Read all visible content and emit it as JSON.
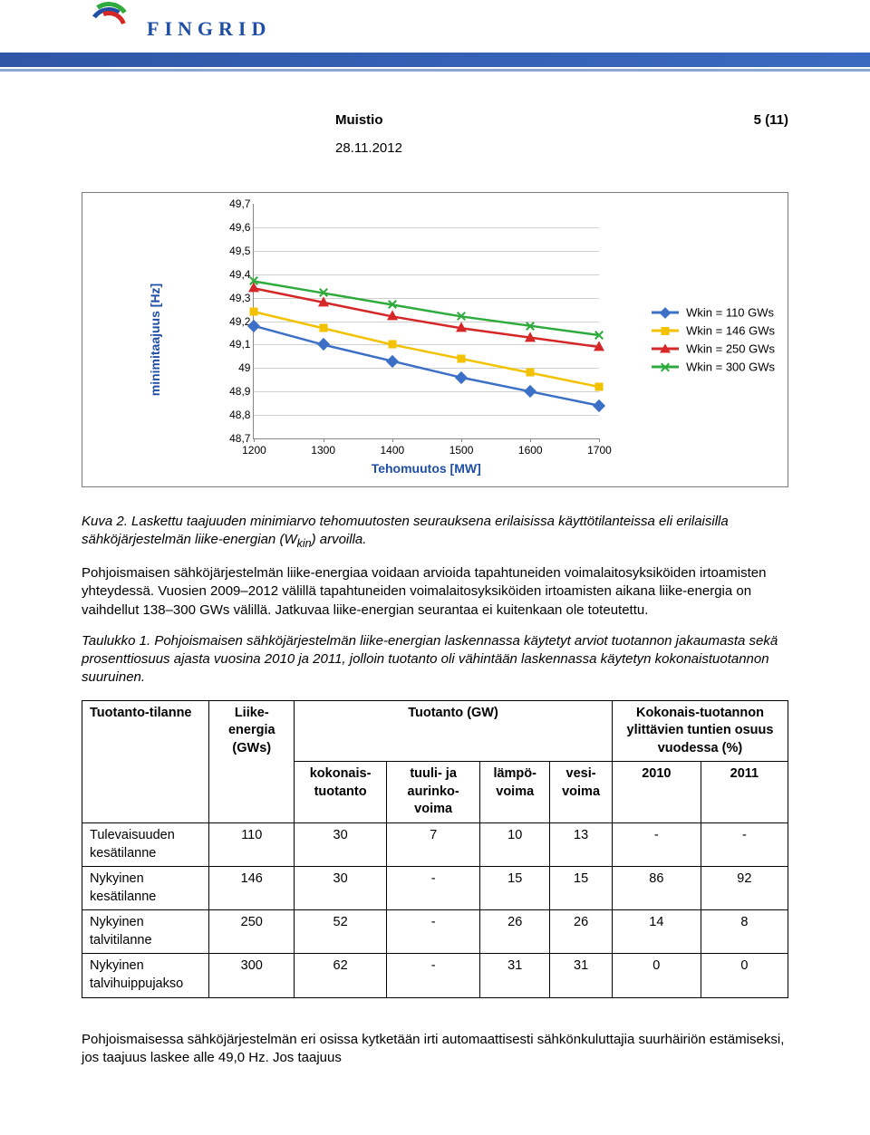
{
  "header": {
    "logo_text": "FINGRID",
    "doc_type": "Muistio",
    "page_of": "5 (11)",
    "date": "28.11.2012"
  },
  "chart": {
    "type": "line",
    "ylabel": "minimitaajuus [Hz]",
    "xlabel": "Tehomuutos [MW]",
    "ylim": [
      48.7,
      49.7
    ],
    "ytick_step": 0.1,
    "yticks": [
      "49,7",
      "49,6",
      "49,5",
      "49,4",
      "49,3",
      "49,2",
      "49,1",
      "49",
      "48,9",
      "48,8",
      "48,7"
    ],
    "xlim": [
      1200,
      1700
    ],
    "xtick_step": 100,
    "xticks": [
      "1200",
      "1300",
      "1400",
      "1500",
      "1600",
      "1700"
    ],
    "grid_color": "#d0d0d0",
    "axis_color": "#888888",
    "background": "#ffffff",
    "label_color": "#1f4fa5",
    "series": [
      {
        "name": "Wkin = 110 GWs",
        "color": "#3b70c6",
        "marker": "diamond",
        "x": [
          1200,
          1300,
          1400,
          1500,
          1600,
          1700
        ],
        "y": [
          49.18,
          49.1,
          49.03,
          48.96,
          48.9,
          48.84
        ]
      },
      {
        "name": "Wkin = 146 GWs",
        "color": "#f2c200",
        "marker": "square",
        "x": [
          1200,
          1300,
          1400,
          1500,
          1600,
          1700
        ],
        "y": [
          49.24,
          49.17,
          49.1,
          49.04,
          48.98,
          48.92
        ]
      },
      {
        "name": "Wkin = 250 GWs",
        "color": "#d62728",
        "marker": "triangle",
        "x": [
          1200,
          1300,
          1400,
          1500,
          1600,
          1700
        ],
        "y": [
          49.34,
          49.28,
          49.22,
          49.17,
          49.13,
          49.09
        ]
      },
      {
        "name": "Wkin = 300 GWs",
        "color": "#2faa3c",
        "marker": "cross",
        "x": [
          1200,
          1300,
          1400,
          1500,
          1600,
          1700
        ],
        "y": [
          49.37,
          49.32,
          49.27,
          49.22,
          49.18,
          49.14
        ]
      }
    ]
  },
  "captions": {
    "fig": "Kuva 2. Laskettu taajuuden minimiarvo tehomuutosten seurauksena erilaisissa käyttötilanteissa eli erilaisilla sähköjärjestelmän liike-energian (W",
    "fig_sub": "kin",
    "fig_end": ") arvoilla.",
    "para1": "Pohjoismaisen sähköjärjestelmän liike-energiaa voidaan arvioida tapahtuneiden voimalaitosyksiköiden irtoamisten yhteydessä. Vuosien 2009–2012 välillä tapahtuneiden voimalaitosyksiköiden irtoamisten aikana liike-energia on vaihdellut 138–300 GWs välillä. Jatkuvaa liike-energian seurantaa ei kuitenkaan ole toteutettu.",
    "tbl_caption": "Taulukko 1. Pohjoismaisen sähköjärjestelmän liike-energian laskennassa käytetyt arviot tuotannon jakaumasta sekä prosenttiosuus ajasta vuosina 2010 ja 2011, jolloin tuotanto oli vähintään laskennassa käytetyn kokonaistuotannon suuruinen.",
    "footer": "Pohjoismaisessa sähköjärjestelmän eri osissa kytketään irti automaattisesti sähkönkuluttajia suurhäiriön estämiseksi, jos taajuus laskee alle 49,0 Hz. Jos taajuus"
  },
  "table": {
    "headers": {
      "c1": "Tuotanto-tilanne",
      "c2": "Liike-energia (GWs)",
      "c3": "Tuotanto (GW)",
      "c4": "Kokonais-tuotannon ylittävien tuntien osuus vuodessa (%)",
      "c3a": "kokonais-tuotanto",
      "c3b": "tuuli- ja aurinko-voima",
      "c3c": "lämpö-voima",
      "c3d": "vesi-voima",
      "c4a": "2010",
      "c4b": "2011"
    },
    "rows": [
      {
        "label": "Tulevaisuuden kesätilanne",
        "e": "110",
        "tot": "30",
        "wind": "7",
        "heat": "10",
        "hydro": "13",
        "y10": "-",
        "y11": "-"
      },
      {
        "label": "Nykyinen kesätilanne",
        "e": "146",
        "tot": "30",
        "wind": "-",
        "heat": "15",
        "hydro": "15",
        "y10": "86",
        "y11": "92"
      },
      {
        "label": "Nykyinen talvitilanne",
        "e": "250",
        "tot": "52",
        "wind": "-",
        "heat": "26",
        "hydro": "26",
        "y10": "14",
        "y11": "8"
      },
      {
        "label": "Nykyinen talvihuippujakso",
        "e": "300",
        "tot": "62",
        "wind": "-",
        "heat": "31",
        "hydro": "31",
        "y10": "0",
        "y11": "0"
      }
    ]
  }
}
